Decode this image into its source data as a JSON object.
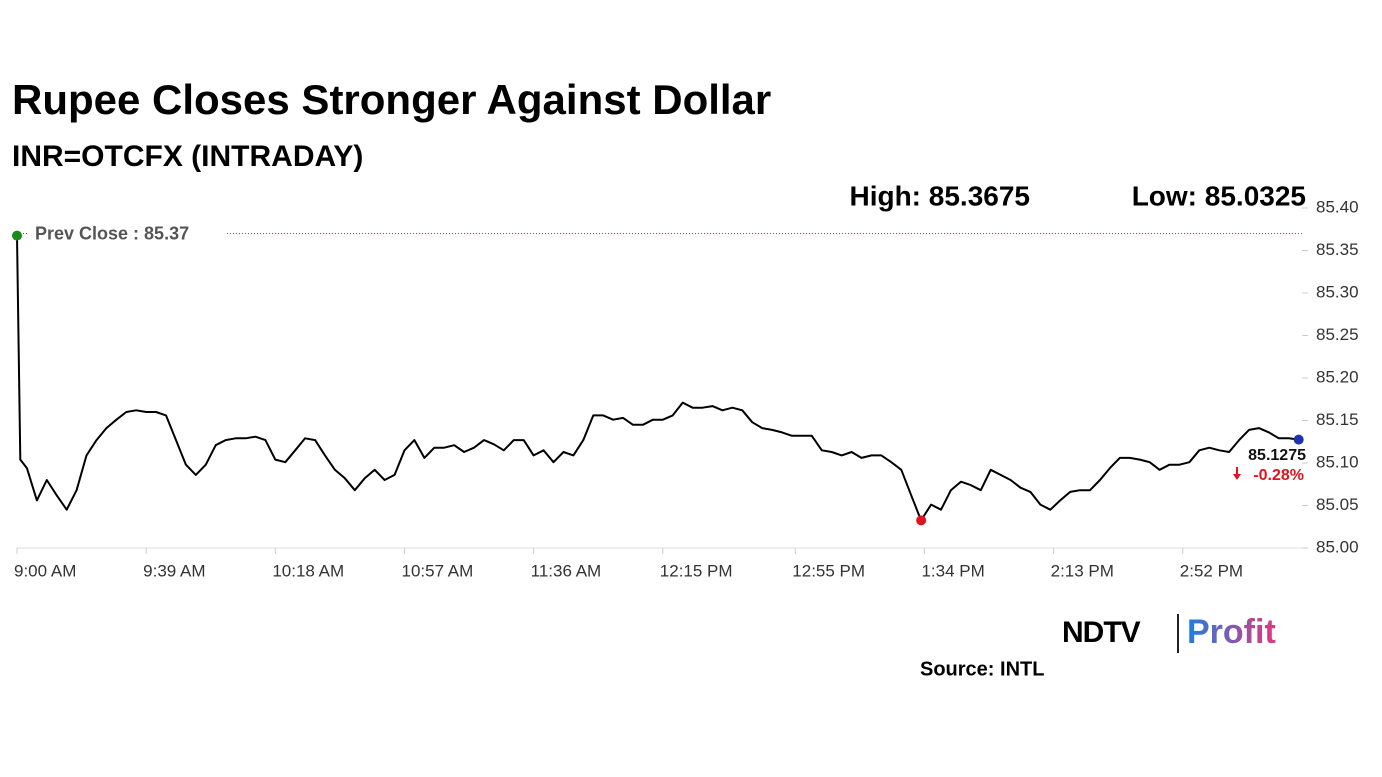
{
  "chart_data": {
    "type": "line",
    "title": "Rupee Closes Stronger Against Dollar",
    "subtitle": "INR=OTCFX (INTRADAY)",
    "high_label": "High: 85.3675",
    "low_label": "Low: 85.0325",
    "reference": {
      "label": "Prev Close : 85.37",
      "value": 85.37,
      "color": "#b04a4a"
    },
    "last_label": "85.1275",
    "change": "-0.28%",
    "color": "#000000",
    "x": [
      540,
      541,
      543,
      546,
      549,
      552,
      555,
      558,
      561,
      564,
      567,
      570,
      573,
      576,
      579,
      582,
      585,
      588,
      591,
      594,
      597,
      600,
      603,
      606,
      609,
      612,
      615,
      618,
      621,
      624,
      627,
      630,
      633,
      636,
      639,
      642,
      645,
      648,
      651,
      654,
      657,
      660,
      663,
      666,
      669,
      672,
      675,
      678,
      681,
      684,
      687,
      690,
      693,
      696,
      699,
      702,
      705,
      708,
      711,
      714,
      717,
      720,
      723,
      726,
      729,
      732,
      735,
      738,
      741,
      744,
      747,
      750,
      753,
      756,
      759,
      762,
      765,
      768,
      771,
      774,
      777,
      780,
      783,
      786,
      789,
      792,
      795,
      798,
      801,
      804,
      807,
      810,
      813,
      816,
      819,
      822,
      825,
      828,
      831,
      834,
      837,
      840,
      843,
      846,
      849,
      852,
      855,
      858,
      861,
      864,
      867,
      870,
      873,
      876,
      879,
      882,
      885,
      888,
      891,
      894,
      897,
      900,
      903,
      906,
      909,
      912,
      915,
      918,
      921,
      924,
      927
    ],
    "values": [
      85.3675,
      85.104,
      85.094,
      85.056,
      85.08,
      85.062,
      85.045,
      85.068,
      85.109,
      85.127,
      85.141,
      85.151,
      85.16,
      85.162,
      85.16,
      85.16,
      85.156,
      85.127,
      85.098,
      85.086,
      85.098,
      85.121,
      85.127,
      85.129,
      85.129,
      85.131,
      85.127,
      85.104,
      85.101,
      85.115,
      85.129,
      85.127,
      85.109,
      85.092,
      85.082,
      85.068,
      85.082,
      85.092,
      85.08,
      85.086,
      85.115,
      85.127,
      85.106,
      85.118,
      85.118,
      85.121,
      85.113,
      85.118,
      85.127,
      85.122,
      85.115,
      85.127,
      85.127,
      85.109,
      85.115,
      85.101,
      85.113,
      85.109,
      85.127,
      85.156,
      85.156,
      85.151,
      85.153,
      85.145,
      85.145,
      85.151,
      85.151,
      85.156,
      85.171,
      85.165,
      85.165,
      85.167,
      85.162,
      85.165,
      85.162,
      85.148,
      85.141,
      85.139,
      85.136,
      85.132,
      85.132,
      85.132,
      85.115,
      85.113,
      85.109,
      85.113,
      85.106,
      85.109,
      85.109,
      85.101,
      85.092,
      85.062,
      85.0325,
      85.051,
      85.045,
      85.068,
      85.078,
      85.074,
      85.068,
      85.092,
      85.086,
      85.08,
      85.071,
      85.066,
      85.051,
      85.045,
      85.056,
      85.066,
      85.068,
      85.068,
      85.08,
      85.094,
      85.106,
      85.106,
      85.104,
      85.101,
      85.092,
      85.098,
      85.098,
      85.101,
      85.115,
      85.118,
      85.115,
      85.113,
      85.127,
      85.139,
      85.141,
      85.136,
      85.129,
      85.129,
      85.1275
    ],
    "markers": [
      {
        "index": 0,
        "color": "#1a8a1a"
      },
      {
        "index": 92,
        "color": "#e0141e"
      },
      {
        "index": 130,
        "color": "#1f33b0"
      }
    ],
    "xlim": [
      540,
      928
    ],
    "xticks": [
      {
        "value": 540,
        "label": "9:00 AM"
      },
      {
        "value": 579,
        "label": "9:39 AM"
      },
      {
        "value": 618,
        "label": "10:18 AM"
      },
      {
        "value": 657,
        "label": "10:57 AM"
      },
      {
        "value": 696,
        "label": "11:36 AM"
      },
      {
        "value": 735,
        "label": "12:15 PM"
      },
      {
        "value": 775,
        "label": "12:55 PM"
      },
      {
        "value": 814,
        "label": "1:34 PM"
      },
      {
        "value": 853,
        "label": "2:13 PM"
      },
      {
        "value": 892,
        "label": "2:52 PM"
      }
    ],
    "ylim": [
      85.0,
      85.4
    ],
    "yticks": [
      {
        "value": 85.0,
        "label": "85.00"
      },
      {
        "value": 85.05,
        "label": "85.05"
      },
      {
        "value": 85.1,
        "label": "85.10"
      },
      {
        "value": 85.15,
        "label": "85.15"
      },
      {
        "value": 85.2,
        "label": "85.20"
      },
      {
        "value": 85.25,
        "label": "85.25"
      },
      {
        "value": 85.3,
        "label": "85.30"
      },
      {
        "value": 85.35,
        "label": "85.35"
      },
      {
        "value": 85.4,
        "label": "85.40"
      }
    ],
    "grid": false,
    "logo": {
      "left": "NDTV",
      "right": "Profit"
    },
    "source": "Source: INTL"
  }
}
